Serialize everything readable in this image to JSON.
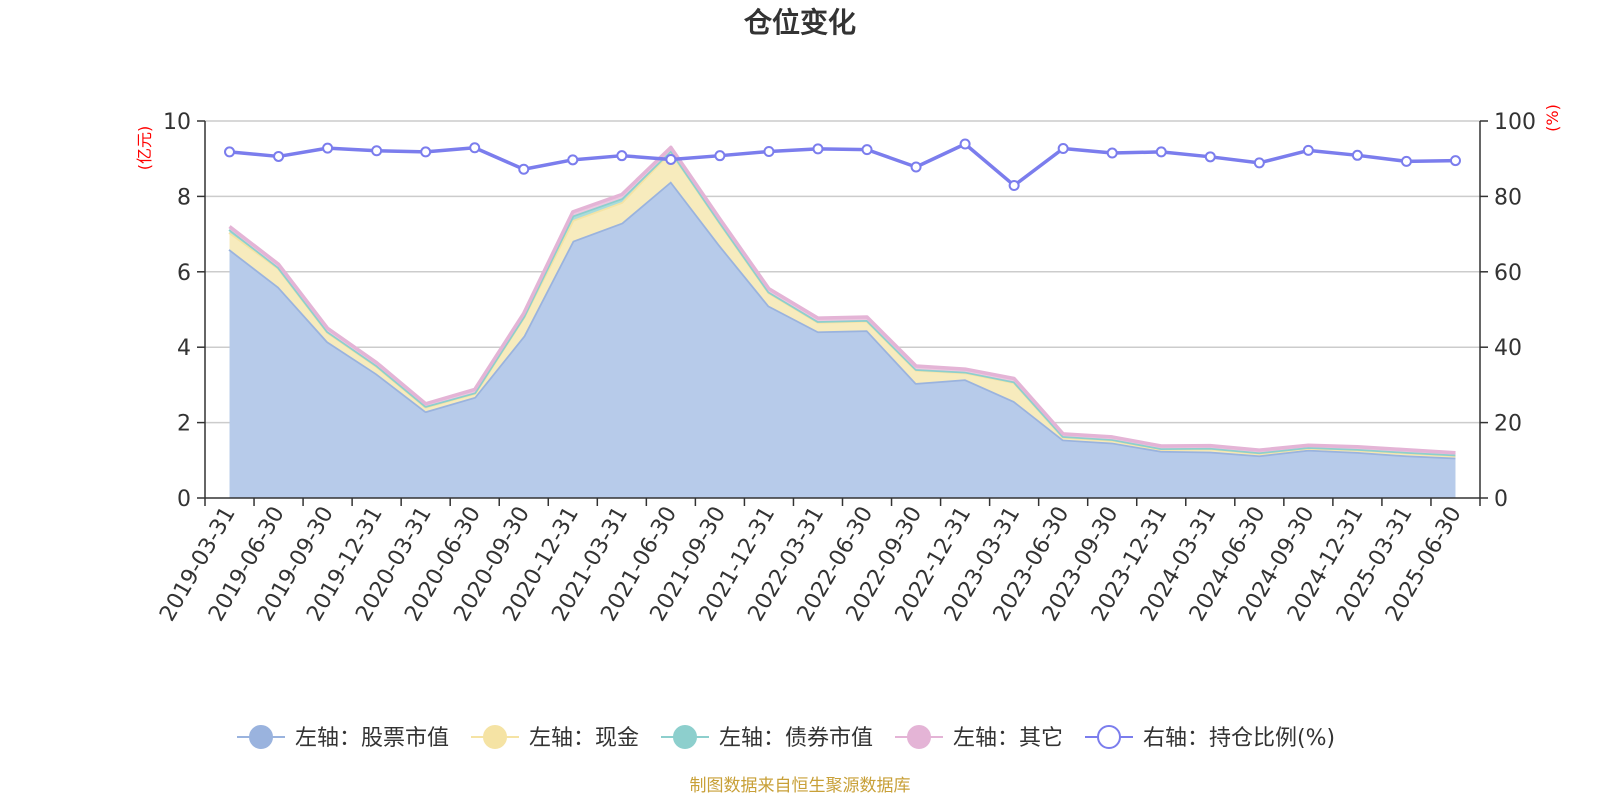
{
  "chart_data": {
    "type": "area",
    "title": "仓位变化",
    "left_axis": {
      "unit": "(亿元)",
      "ylim": [
        0,
        10
      ],
      "ticks": [
        0,
        2,
        4,
        6,
        8,
        10
      ]
    },
    "right_axis": {
      "unit": "(%)",
      "ylim": [
        0,
        100
      ],
      "ticks": [
        0,
        20,
        40,
        60,
        80,
        100
      ]
    },
    "categories": [
      "2019-03-31",
      "2019-06-30",
      "2019-09-30",
      "2019-12-31",
      "2020-03-31",
      "2020-06-30",
      "2020-09-30",
      "2020-12-31",
      "2021-03-31",
      "2021-06-30",
      "2021-09-30",
      "2021-12-31",
      "2022-03-31",
      "2022-06-30",
      "2022-09-30",
      "2022-12-31",
      "2023-03-31",
      "2023-06-30",
      "2023-09-30",
      "2023-12-31",
      "2024-03-31",
      "2024-06-30",
      "2024-09-30",
      "2024-12-31",
      "2025-03-31",
      "2025-06-30"
    ],
    "stacked": true,
    "series": [
      {
        "name": "左轴：股票市值",
        "axis": "left",
        "color": "#9ab3de",
        "fill": "#b7cbea",
        "values": [
          6.6,
          5.6,
          4.15,
          3.3,
          2.3,
          2.68,
          4.3,
          6.82,
          7.3,
          8.4,
          6.7,
          5.1,
          4.42,
          4.45,
          3.05,
          3.15,
          2.57,
          1.55,
          1.47,
          1.25,
          1.23,
          1.13,
          1.28,
          1.22,
          1.13,
          1.07
        ]
      },
      {
        "name": "左轴：现金",
        "axis": "left",
        "color": "#f5e3a4",
        "fill": "#f7ebbd",
        "values": [
          0.45,
          0.5,
          0.25,
          0.2,
          0.12,
          0.1,
          0.5,
          0.55,
          0.55,
          0.8,
          0.6,
          0.35,
          0.25,
          0.25,
          0.35,
          0.18,
          0.5,
          0.07,
          0.07,
          0.05,
          0.08,
          0.06,
          0.05,
          0.06,
          0.07,
          0.06
        ]
      },
      {
        "name": "左轴：债券市值",
        "axis": "left",
        "color": "#8dcfcd",
        "fill": "#a8dcdc",
        "values": [
          0.08,
          0.02,
          0.02,
          0.02,
          0.02,
          0.02,
          0.02,
          0.12,
          0.1,
          0.02,
          0.02,
          0.02,
          0.02,
          0.02,
          0.02,
          0.02,
          0.02,
          0.02,
          0.02,
          0.02,
          0.02,
          0.02,
          0.02,
          0.02,
          0.02,
          0.02
        ]
      },
      {
        "name": "左轴：其它",
        "axis": "left",
        "color": "#e4b4d6",
        "fill": "#ecc8e0",
        "values": [
          0.07,
          0.08,
          0.08,
          0.07,
          0.06,
          0.08,
          0.08,
          0.1,
          0.1,
          0.08,
          0.08,
          0.08,
          0.08,
          0.08,
          0.08,
          0.07,
          0.08,
          0.06,
          0.06,
          0.06,
          0.06,
          0.06,
          0.05,
          0.06,
          0.06,
          0.05
        ]
      }
    ],
    "line_series": {
      "name": "右轴：持仓比例(%)",
      "axis": "right",
      "color": "#7b7ded",
      "values": [
        91.8,
        90.6,
        92.8,
        92.1,
        91.8,
        92.9,
        87.2,
        89.7,
        90.8,
        89.8,
        90.8,
        91.9,
        92.6,
        92.4,
        87.8,
        93.9,
        82.9,
        92.7,
        91.5,
        91.8,
        90.5,
        88.9,
        92.2,
        90.9,
        89.3,
        89.5
      ]
    },
    "legend": {
      "position": "bottom"
    },
    "grid": true
  },
  "footer": "制图数据来自恒生聚源数据库"
}
